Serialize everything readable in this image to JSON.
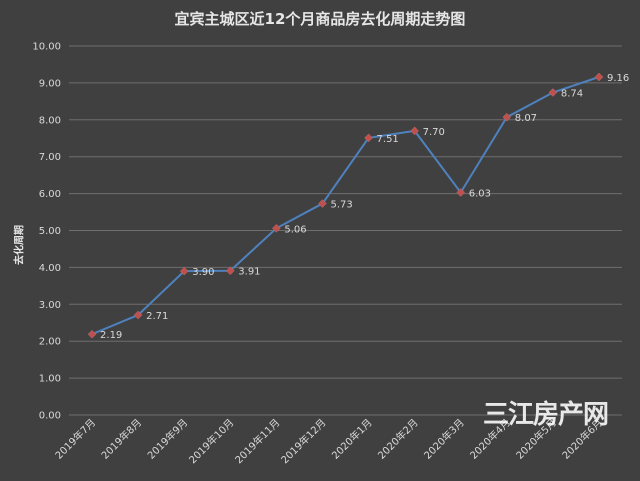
{
  "chart_data": {
    "type": "line",
    "title": "宜宾主城区近12个月商品房去化周期走势图",
    "ylabel": "去化周期",
    "xlabel": "",
    "categories": [
      "2019年7月",
      "2019年8月",
      "2019年9月",
      "2019年10月",
      "2019年11月",
      "2019年12月",
      "2020年1月",
      "2020年2月",
      "2020年3月",
      "2020年4月",
      "2020年5月",
      "2020年6月"
    ],
    "series": [
      {
        "values": [
          2.19,
          2.71,
          3.9,
          3.91,
          5.06,
          5.73,
          7.51,
          7.7,
          6.03,
          8.07,
          8.74,
          9.16
        ]
      }
    ],
    "data_labels": [
      "2.19",
      "2.71",
      "3.90",
      "3.91",
      "5.06",
      "5.73",
      "7.51",
      "7.70",
      "6.03",
      "8.07",
      "8.74",
      "9.16"
    ],
    "y_ticks": [
      "0.00",
      "1.00",
      "2.00",
      "3.00",
      "4.00",
      "5.00",
      "6.00",
      "7.00",
      "8.00",
      "9.00",
      "10.00"
    ],
    "ylim": [
      0,
      10
    ],
    "grid": true,
    "colors": {
      "background": "#404040",
      "line": "#4f81bd",
      "marker": "#c0504d",
      "grid": "#6e6e6e",
      "text": "#d9d9d9"
    }
  },
  "watermark": "三江房产网"
}
